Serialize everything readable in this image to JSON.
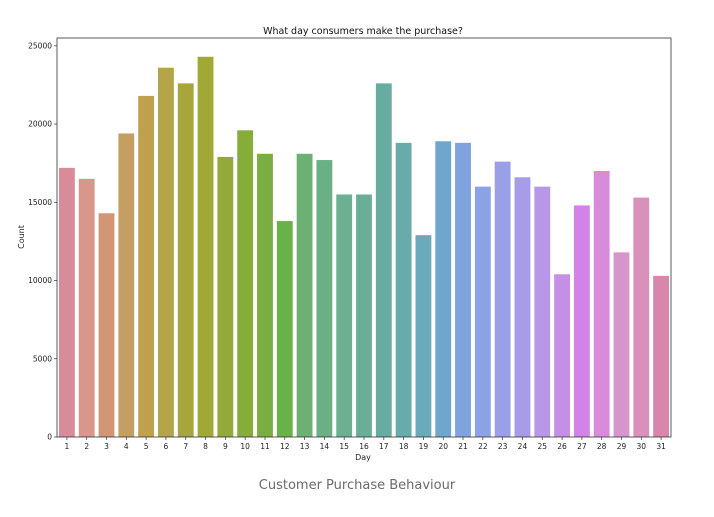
{
  "caption": "Customer Purchase Behaviour",
  "chart_data": {
    "type": "bar",
    "title": "What day consumers make the purchase?",
    "xlabel": "Day",
    "ylabel": "Count",
    "ylim": [
      0,
      25500
    ],
    "yticks": [
      0,
      5000,
      10000,
      15000,
      20000,
      25000
    ],
    "grid": false,
    "categories": [
      "1",
      "2",
      "3",
      "4",
      "5",
      "6",
      "7",
      "8",
      "9",
      "10",
      "11",
      "12",
      "13",
      "14",
      "15",
      "16",
      "17",
      "18",
      "19",
      "20",
      "21",
      "22",
      "23",
      "24",
      "25",
      "26",
      "27",
      "28",
      "29",
      "30",
      "31"
    ],
    "values": [
      17200,
      16500,
      14300,
      19400,
      21800,
      23600,
      22600,
      24300,
      17900,
      19600,
      18100,
      13800,
      18100,
      17700,
      15500,
      15500,
      22600,
      18800,
      12900,
      18900,
      18800,
      16000,
      17600,
      16600,
      16000,
      10400,
      14800,
      17000,
      11800,
      15300,
      10300
    ],
    "colors": [
      "#d88c9a",
      "#d9968a",
      "#d39675",
      "#c59f62",
      "#bfa04c",
      "#b4a548",
      "#a8a53f",
      "#a0a836",
      "#93aa3a",
      "#85ad3a",
      "#7aae42",
      "#69b24a",
      "#6cb074",
      "#6aaf86",
      "#6caf91",
      "#6aae9a",
      "#68ac9f",
      "#69abaa",
      "#6aaabb",
      "#6ea6cd",
      "#7fa3de",
      "#8ca2e6",
      "#9a9fe8",
      "#a79ce8",
      "#b897e8",
      "#c58fe6",
      "#d382e8",
      "#d88adb",
      "#d695cc",
      "#d991bb",
      "#d986ab"
    ]
  }
}
